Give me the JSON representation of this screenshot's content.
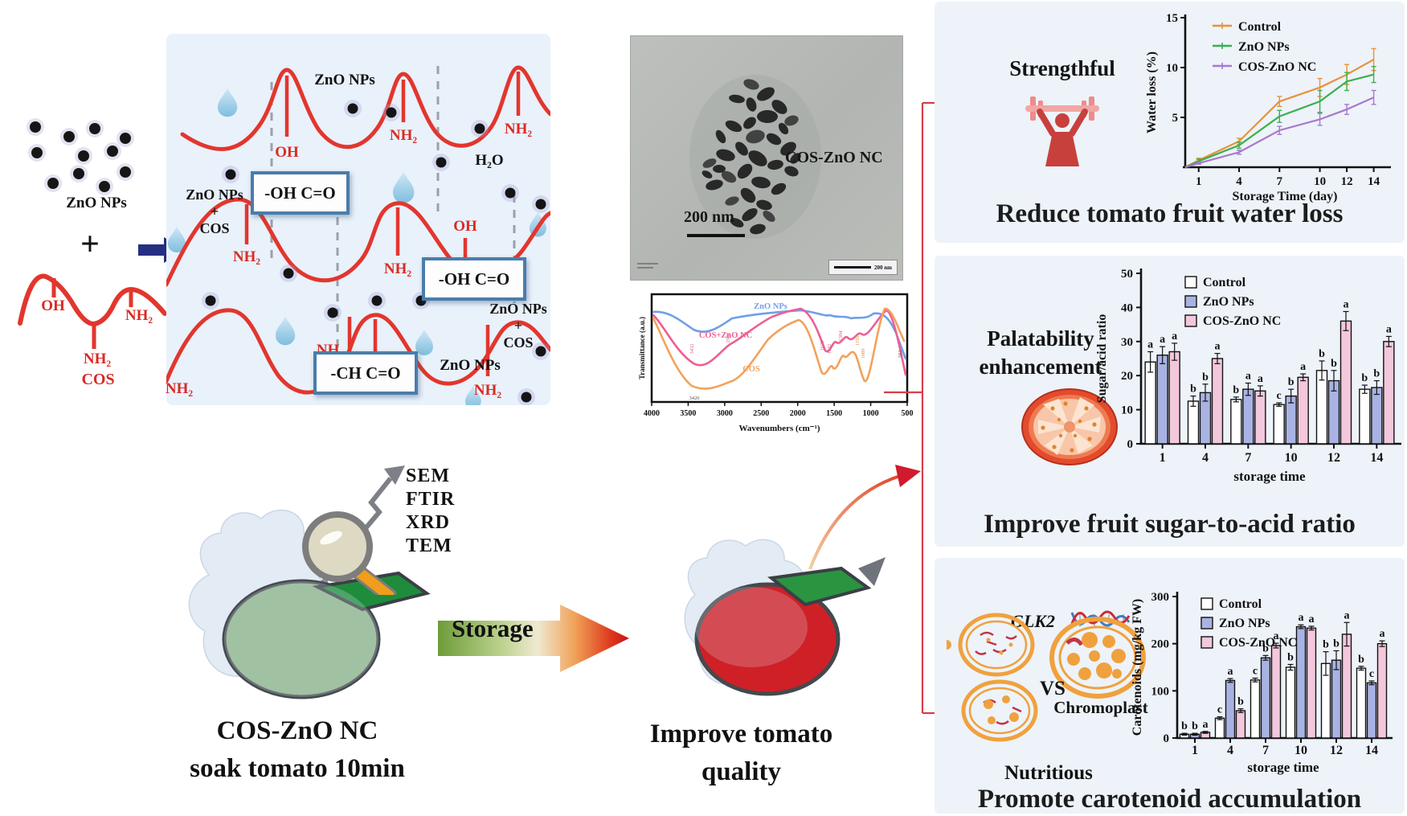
{
  "left": {
    "zno_label": "ZnO NPs",
    "plus": "+",
    "oh": "OH",
    "nh2": "NH₂",
    "cos": "COS"
  },
  "scheme": {
    "zno_nps": "ZnO NPs",
    "oh": "OH",
    "nh2": "NH₂",
    "h2o": "H₂O",
    "plus": "+",
    "cos": "COS",
    "box_oh": "-OH C=O",
    "box_ch": "-CH C=O"
  },
  "tem": {
    "label": "COS-ZnO NC",
    "scale_bar": "200 nm"
  },
  "ftir": {
    "ylabel": "Transmittance (a.u.)",
    "xlabel": "Wavenumbers (cm⁻¹)",
    "xticks": [
      "4000",
      "3500",
      "3000",
      "2500",
      "2000",
      "1500",
      "1000",
      "500"
    ],
    "curve_labels": [
      "ZnO NPs",
      "COS+ZnO NC",
      "COS"
    ],
    "peaks": [
      "3432",
      "2932",
      "1635",
      "1532",
      "1384",
      "1155",
      "1089",
      "561",
      "3420"
    ]
  },
  "process": {
    "methods": [
      "SEM",
      "FTIR",
      "XRD",
      "TEM"
    ],
    "soak_line1": "COS-ZnO NC",
    "soak_line2": "soak tomato 10min",
    "storage": "Storage",
    "improve_line1": "Improve tomato",
    "improve_line2": "quality"
  },
  "panels": {
    "p1": {
      "tag": "Strengthful",
      "headline": "Reduce tomato fruit water loss"
    },
    "p2": {
      "tag_line1": "Palatability",
      "tag_line2": "enhancement",
      "headline": "Improve fruit sugar-to-acid ratio"
    },
    "p3": {
      "gene": "GLK2",
      "vs": "VS",
      "chromoplast": "Chromoplast",
      "nutritious": "Nutritious",
      "headline": "Promote carotenoid accumulation"
    }
  },
  "chart_data": [
    {
      "id": "water_loss",
      "type": "line",
      "title": "",
      "xlabel": "Storage Time (day)",
      "ylabel": "Water loss (%)",
      "x": [
        0,
        1,
        4,
        7,
        10,
        12,
        14
      ],
      "xticks": [
        1,
        4,
        7,
        10,
        12,
        14
      ],
      "ylim": [
        0,
        15
      ],
      "yticks": [
        5,
        10,
        15
      ],
      "legend_position": "top-left",
      "grid": false,
      "series": [
        {
          "name": "Control",
          "color": "#e8913a",
          "values": [
            0,
            0.7,
            2.6,
            6.6,
            8.0,
            9.3,
            10.8
          ],
          "errors": [
            0,
            0.2,
            0.3,
            0.5,
            0.9,
            1.0,
            1.1
          ]
        },
        {
          "name": "ZnO NPs",
          "color": "#3cae4e",
          "values": [
            0,
            0.6,
            2.2,
            5.1,
            6.6,
            8.6,
            9.3
          ],
          "errors": [
            0,
            0.2,
            0.3,
            0.6,
            1.1,
            0.9,
            0.8
          ]
        },
        {
          "name": "COS-ZnO NC",
          "color": "#a977ce",
          "values": [
            0,
            0.4,
            1.5,
            3.7,
            4.8,
            5.8,
            7.0
          ],
          "errors": [
            0,
            0.1,
            0.2,
            0.4,
            0.6,
            0.5,
            0.7
          ]
        }
      ]
    },
    {
      "id": "sugar_acid",
      "type": "bar",
      "title": "",
      "xlabel": "storage time",
      "ylabel": "Sugar/acid ratio",
      "categories": [
        "1",
        "4",
        "7",
        "10",
        "12",
        "14"
      ],
      "ylim": [
        0,
        50
      ],
      "yticks": [
        0,
        10,
        20,
        30,
        40,
        50
      ],
      "legend_position": "top-left",
      "grid": false,
      "series": [
        {
          "name": "Control",
          "fill": "#ffffff",
          "values": [
            24,
            12.5,
            13,
            11.5,
            21.5,
            16
          ],
          "errors": [
            3,
            1.5,
            0.7,
            0.5,
            2.8,
            1.2
          ],
          "letters": [
            "a",
            "b",
            "b",
            "c",
            "b",
            "b"
          ]
        },
        {
          "name": "ZnO NPs",
          "fill": "#a9b3e3",
          "values": [
            26,
            15,
            16,
            14,
            18.5,
            16.5
          ],
          "errors": [
            2.5,
            2.5,
            1.8,
            2,
            3,
            2
          ],
          "letters": [
            "a",
            "b",
            "a",
            "b",
            "b",
            "b"
          ]
        },
        {
          "name": "COS-ZnO NC",
          "fill": "#f3c7dc",
          "values": [
            27,
            25,
            15.5,
            19.5,
            36,
            30
          ],
          "errors": [
            2.5,
            1.5,
            1.5,
            1,
            2.8,
            1.5
          ],
          "letters": [
            "a",
            "a",
            "a",
            "a",
            "a",
            "a"
          ]
        }
      ]
    },
    {
      "id": "carotenoids",
      "type": "bar",
      "title": "",
      "xlabel": "storage time",
      "ylabel": "Carotenoids (mg/kg FW)",
      "categories": [
        "1",
        "4",
        "7",
        "10",
        "12",
        "14"
      ],
      "ylim": [
        0,
        300
      ],
      "yticks": [
        0,
        100,
        200,
        300
      ],
      "legend_position": "top-left",
      "grid": false,
      "series": [
        {
          "name": "Control",
          "fill": "#ffffff",
          "values": [
            8,
            42,
            123,
            150,
            158,
            148
          ],
          "errors": [
            2,
            3,
            4,
            6,
            25,
            4
          ],
          "letters": [
            "b",
            "c",
            "c",
            "b",
            "b",
            "b"
          ]
        },
        {
          "name": "ZnO NPs",
          "fill": "#a9b3e3",
          "values": [
            8,
            122,
            170,
            236,
            165,
            117
          ],
          "errors": [
            2,
            4,
            5,
            4,
            20,
            4
          ],
          "letters": [
            "b",
            "a",
            "b",
            "a",
            "b",
            "c"
          ]
        },
        {
          "name": "COS-ZnO NC",
          "fill": "#f3c7dc",
          "values": [
            12,
            58,
            196,
            233,
            220,
            200
          ],
          "errors": [
            2,
            4,
            5,
            4,
            25,
            6
          ],
          "letters": [
            "a",
            "b",
            "a",
            "a",
            "a",
            "a"
          ]
        }
      ]
    },
    {
      "id": "ftir_spectra",
      "type": "line",
      "title": "",
      "xlabel": "Wavenumbers (cm⁻¹)",
      "ylabel": "Transmittance (a.u.)",
      "x_range": [
        4000,
        500
      ],
      "series_names": [
        "ZnO NPs",
        "COS+ZnO NC",
        "COS"
      ],
      "series_colors": [
        "#6f9fe8",
        "#ee5f93",
        "#f2a25c"
      ],
      "peak_annotations": [
        3432,
        2932,
        3420,
        1635,
        1532,
        1384,
        1155,
        1089,
        561
      ]
    }
  ]
}
